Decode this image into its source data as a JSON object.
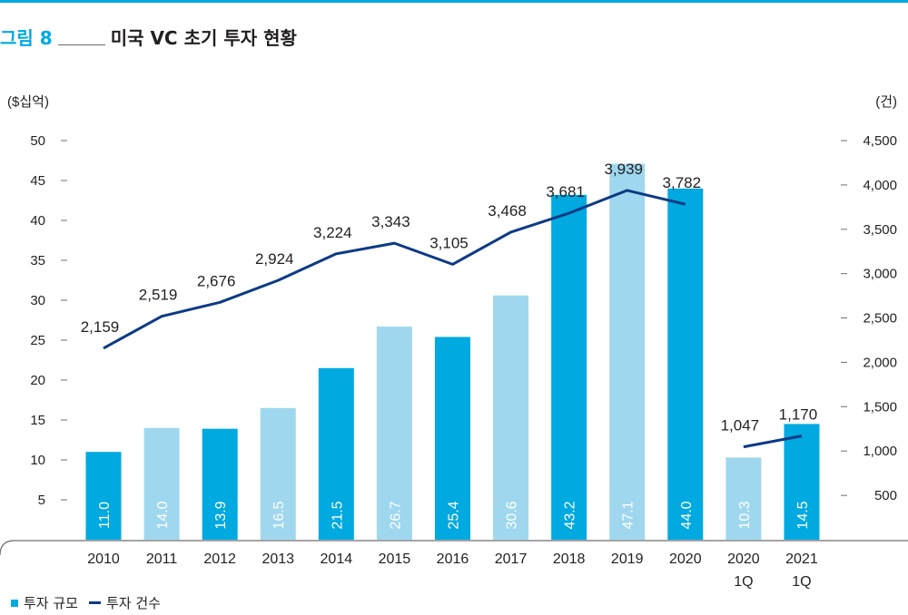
{
  "header": {
    "figure_label": "그림 8",
    "title": "미국 VC 초기 투자 현황"
  },
  "colors": {
    "accent": "#00a9e0",
    "bar_dark": "#00a9e0",
    "bar_light": "#9fd8ee",
    "line": "#0c3a85",
    "axis": "#6d6e71",
    "text": "#231f20"
  },
  "legend": {
    "bar_label": "투자 규모",
    "line_label": "투자 건수"
  },
  "chart_data": {
    "type": "bar",
    "title": "미국 VC 초기 투자 현황",
    "categories": [
      [
        "2010"
      ],
      [
        "2011"
      ],
      [
        "2012"
      ],
      [
        "2013"
      ],
      [
        "2014"
      ],
      [
        "2015"
      ],
      [
        "2016"
      ],
      [
        "2017"
      ],
      [
        "2018"
      ],
      [
        "2019"
      ],
      [
        "2020"
      ],
      [
        "2020",
        "1Q"
      ],
      [
        "2021",
        "1Q"
      ]
    ],
    "series": [
      {
        "name": "투자 규모",
        "type": "bar",
        "axis": "left",
        "values": [
          11.0,
          14.0,
          13.9,
          16.5,
          21.5,
          26.7,
          25.4,
          30.6,
          43.2,
          47.1,
          44.0,
          10.3,
          14.5
        ],
        "labels": [
          "11.0",
          "14.0",
          "13.9",
          "16.5",
          "21.5",
          "26.7",
          "25.4",
          "30.6",
          "43.2",
          "47.1",
          "44.0",
          "10.3",
          "14.5"
        ],
        "shade": [
          "dark",
          "light",
          "dark",
          "light",
          "dark",
          "light",
          "dark",
          "light",
          "dark",
          "light",
          "dark",
          "light",
          "dark"
        ]
      },
      {
        "name": "투자 건수",
        "type": "line",
        "axis": "right",
        "segments": [
          {
            "indices": [
              0,
              1,
              2,
              3,
              4,
              5,
              6,
              7,
              8,
              9,
              10
            ],
            "values": [
              2159,
              2519,
              2676,
              2924,
              3224,
              3343,
              3105,
              3468,
              3681,
              3939,
              3782
            ]
          },
          {
            "indices": [
              11,
              12
            ],
            "values": [
              1047,
              1170
            ]
          }
        ],
        "labels": [
          "2,159",
          "2,519",
          "2,676",
          "2,924",
          "3,224",
          "3,343",
          "3,105",
          "3,468",
          "3,681",
          "3,939",
          "3,782",
          "1,047",
          "1,170"
        ]
      }
    ],
    "y_left": {
      "unit_label": "($십억)",
      "ylim": [
        0,
        50
      ],
      "ticks": [
        5,
        10,
        15,
        20,
        25,
        30,
        35,
        40,
        45,
        50
      ],
      "tick_labels": [
        "5",
        "10",
        "15",
        "20",
        "25",
        "30",
        "35",
        "40",
        "45",
        "50"
      ]
    },
    "y_right": {
      "unit_label": "(건)",
      "ylim": [
        0,
        4500
      ],
      "ticks": [
        500,
        1000,
        1500,
        2000,
        2500,
        3000,
        3500,
        4000,
        4500
      ],
      "tick_labels": [
        "500",
        "1,000",
        "1,500",
        "2,000",
        "2,500",
        "3,000",
        "3,500",
        "4,000",
        "4,500"
      ]
    },
    "grid": false,
    "legend_position": "bottom-left"
  }
}
